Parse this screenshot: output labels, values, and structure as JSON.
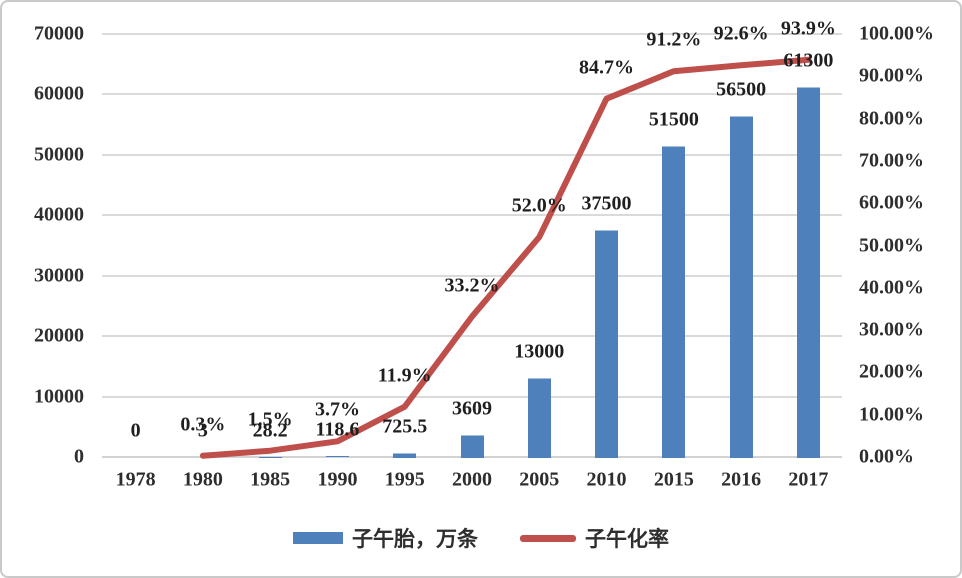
{
  "chart_data": {
    "type": "bar",
    "subtype": "bar-line-combo",
    "title": "",
    "categories": [
      "1978",
      "1980",
      "1985",
      "1990",
      "1995",
      "2000",
      "2005",
      "2010",
      "2015",
      "2016",
      "2017"
    ],
    "series": [
      {
        "name": "子午胎，万条",
        "type": "bar",
        "axis": "left",
        "color": "#4e80bc",
        "values": [
          0,
          3,
          28.2,
          118.6,
          725.5,
          3609,
          13000,
          37500,
          51500,
          56500,
          61300
        ],
        "labels": [
          "0",
          "3",
          "28.2",
          "118.6",
          "725.5",
          "3609",
          "13000",
          "37500",
          "51500",
          "56500",
          "61300"
        ]
      },
      {
        "name": "子午化率",
        "type": "line",
        "axis": "right",
        "color": "#bf4f4b",
        "values": [
          null,
          0.3,
          1.5,
          3.7,
          11.9,
          33.2,
          52.0,
          84.7,
          91.2,
          92.6,
          93.9
        ],
        "labels": [
          null,
          "0.3%",
          "1.5%",
          "3.7%",
          "11.9%",
          "33.2%",
          "52.0%",
          "84.7%",
          "91.2%",
          "92.6%",
          "93.9%"
        ]
      }
    ],
    "left_axis": {
      "min": 0,
      "max": 70000,
      "ticks": [
        0,
        10000,
        20000,
        30000,
        40000,
        50000,
        60000,
        70000
      ],
      "tick_labels": [
        "0",
        "10000",
        "20000",
        "30000",
        "40000",
        "50000",
        "60000",
        "70000"
      ]
    },
    "right_axis": {
      "min": 0,
      "max": 100,
      "ticks": [
        0,
        10,
        20,
        30,
        40,
        50,
        60,
        70,
        80,
        90,
        100
      ],
      "tick_labels": [
        "0.00%",
        "10.00%",
        "20.00%",
        "30.00%",
        "40.00%",
        "50.00%",
        "60.00%",
        "70.00%",
        "80.00%",
        "90.00%",
        "100.00%"
      ]
    },
    "grid": true,
    "legend_position": "bottom",
    "legend": [
      {
        "label": "子午胎，万条",
        "swatch": "bar",
        "color": "#4e80bc"
      },
      {
        "label": "子午化率",
        "swatch": "line",
        "color": "#bf4f4b"
      }
    ],
    "colors": {
      "bar": "#4e80bc",
      "line": "#bf4f4b",
      "gridline": "#dadada",
      "text": "#2e2e2e",
      "frame_border": "#c9c9c9",
      "background": "#ffffff"
    }
  }
}
